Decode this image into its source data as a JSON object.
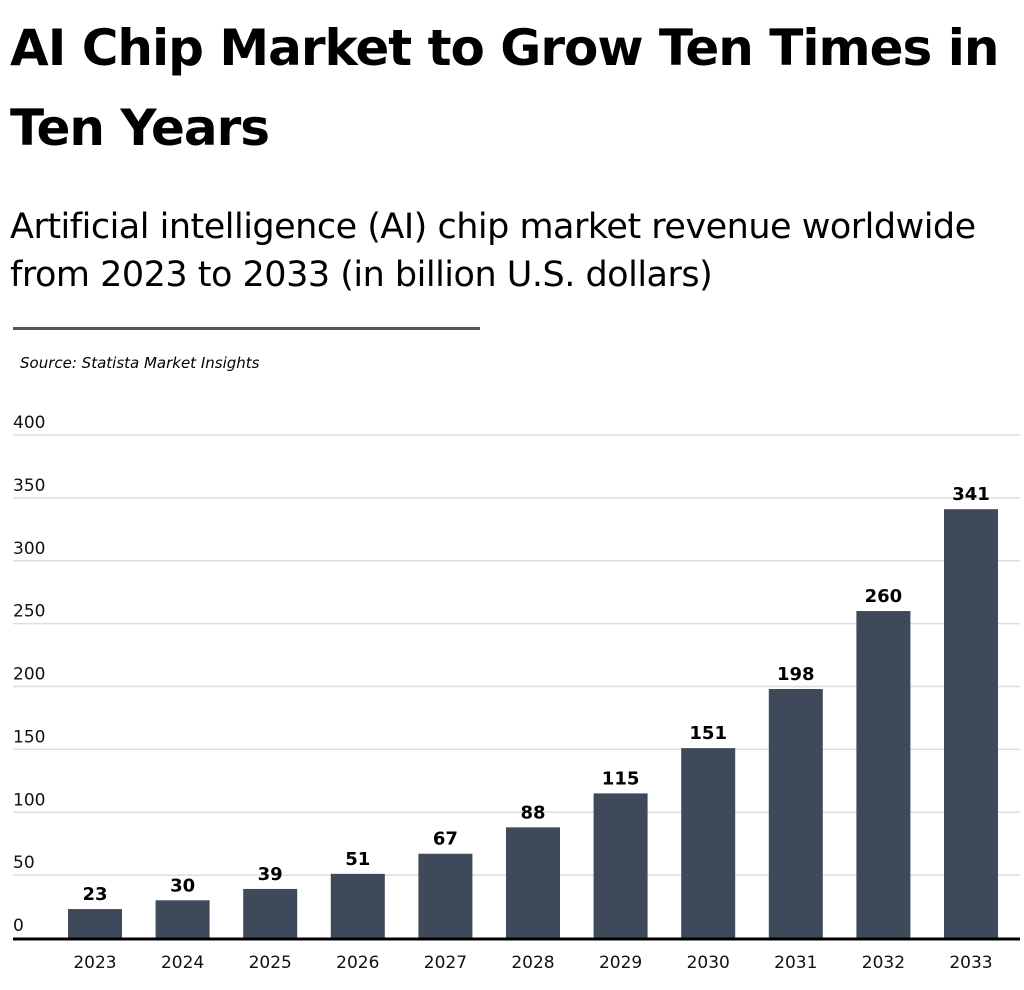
{
  "title": "AI Chip Market to Grow Ten Times in Ten Years",
  "subtitle": "Artificial intelligence (AI) chip market revenue worldwide from 2023 to 2033 (in billion U.S. dollars)",
  "source": "Source: Statista Market Insights",
  "chart_data": {
    "type": "bar",
    "title": "AI Chip Market to Grow Ten Times in Ten Years",
    "categories": [
      "2023",
      "2024",
      "2025",
      "2026",
      "2027",
      "2028",
      "2029",
      "2030",
      "2031",
      "2032",
      "2033"
    ],
    "values": [
      23,
      30,
      39,
      51,
      67,
      88,
      115,
      151,
      198,
      260,
      341
    ],
    "ylim": [
      0,
      400
    ],
    "yticks": [
      0,
      50,
      100,
      150,
      200,
      250,
      300,
      350,
      400
    ],
    "grid": true,
    "data_labels": true,
    "bar_color": "#3e4a5a"
  }
}
